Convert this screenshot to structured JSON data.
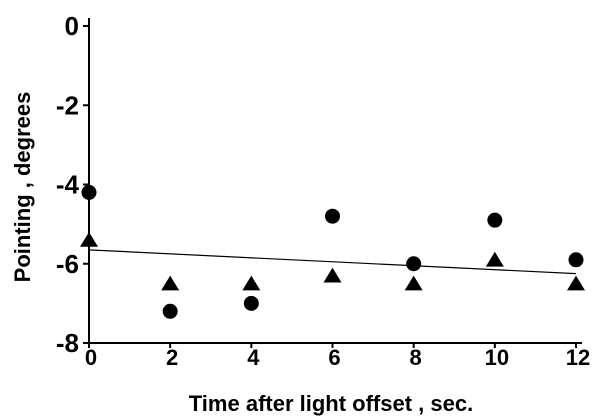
{
  "chart_data": {
    "type": "scatter",
    "title": "",
    "xlabel": "Time after light offset , sec.",
    "ylabel": "Pointing , degrees",
    "xlim": [
      0,
      12
    ],
    "ylim": [
      -8,
      0
    ],
    "x_ticks": [
      0,
      2,
      4,
      6,
      8,
      10,
      12
    ],
    "y_ticks": [
      0,
      -2,
      -4,
      -6,
      -8
    ],
    "x_tick_labels": [
      "0",
      "2",
      "4",
      "6",
      "8",
      "10",
      "12"
    ],
    "y_tick_labels": [
      "0",
      "-2",
      "-4",
      "-6",
      "-8"
    ],
    "grid": false,
    "legend": "none",
    "series": [
      {
        "marker": "circle",
        "color": "#000000",
        "x": [
          0,
          2,
          4,
          6,
          8,
          10,
          12
        ],
        "y": [
          -4.2,
          -7.2,
          -7.0,
          -4.8,
          -6.0,
          -4.9,
          -5.9
        ]
      },
      {
        "marker": "triangle",
        "color": "#000000",
        "x": [
          0,
          2,
          4,
          6,
          8,
          10,
          12
        ],
        "y": [
          -5.4,
          -6.5,
          -6.5,
          -6.3,
          -6.5,
          -5.9,
          -6.5
        ]
      }
    ],
    "trend_line": {
      "x": [
        0,
        12
      ],
      "y": [
        -5.65,
        -6.25
      ]
    }
  }
}
